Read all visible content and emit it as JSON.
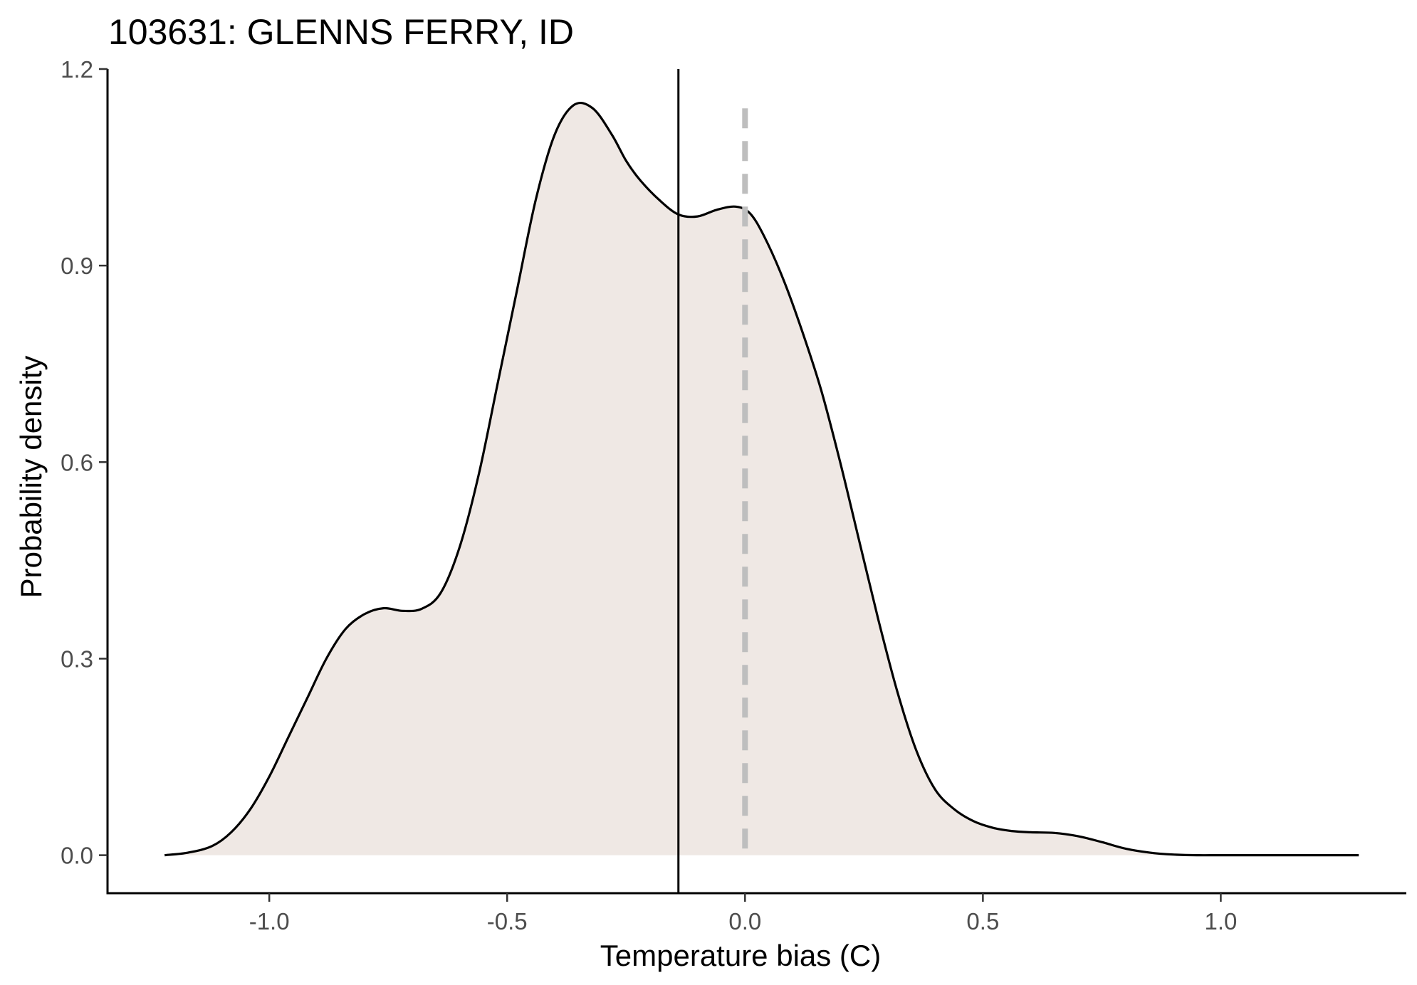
{
  "chart_data": {
    "type": "area",
    "title": "103631: GLENNS FERRY, ID",
    "xlabel": "Temperature bias (C)",
    "ylabel": "Probability density",
    "xlim": [
      -1.34,
      1.39
    ],
    "ylim": [
      -0.058,
      1.2
    ],
    "x_ticks": [
      -1.0,
      -0.5,
      0.0,
      0.5,
      1.0
    ],
    "x_tick_labels": [
      "-1.0",
      "-0.5",
      "0.0",
      "0.5",
      "1.0"
    ],
    "y_ticks": [
      0.0,
      0.3,
      0.6,
      0.9,
      1.2
    ],
    "y_tick_labels": [
      "0.0",
      "0.3",
      "0.6",
      "0.9",
      "1.2"
    ],
    "grid": false,
    "legend": "none",
    "fill_color": "#efe8e4",
    "line_color": "#000000",
    "mean_line_color": "#000000",
    "zero_line_color": "#bebebe",
    "vertical_lines": [
      {
        "x": -0.14,
        "style": "solid"
      },
      {
        "x": 0.0,
        "style": "dashed"
      }
    ],
    "series": [
      {
        "x": [
          -1.22,
          -1.17,
          -1.12,
          -1.08,
          -1.04,
          -1.0,
          -0.96,
          -0.92,
          -0.88,
          -0.84,
          -0.8,
          -0.76,
          -0.72,
          -0.68,
          -0.64,
          -0.6,
          -0.56,
          -0.52,
          -0.48,
          -0.44,
          -0.4,
          -0.36,
          -0.32,
          -0.28,
          -0.25,
          -0.22,
          -0.18,
          -0.14,
          -0.1,
          -0.06,
          -0.02,
          0.01,
          0.04,
          0.08,
          0.12,
          0.16,
          0.2,
          0.24,
          0.28,
          0.32,
          0.36,
          0.4,
          0.44,
          0.48,
          0.52,
          0.56,
          0.6,
          0.65,
          0.7,
          0.75,
          0.8,
          0.85,
          0.9,
          0.95,
          1.0,
          1.05,
          1.1,
          1.15,
          1.2,
          1.29
        ],
        "values": [
          0.0,
          0.004,
          0.014,
          0.035,
          0.07,
          0.12,
          0.18,
          0.24,
          0.3,
          0.345,
          0.368,
          0.377,
          0.373,
          0.376,
          0.4,
          0.47,
          0.58,
          0.72,
          0.86,
          1.0,
          1.1,
          1.145,
          1.14,
          1.1,
          1.06,
          1.03,
          1.0,
          0.978,
          0.975,
          0.985,
          0.99,
          0.98,
          0.945,
          0.88,
          0.8,
          0.71,
          0.6,
          0.48,
          0.36,
          0.25,
          0.16,
          0.1,
          0.07,
          0.052,
          0.042,
          0.037,
          0.035,
          0.034,
          0.029,
          0.02,
          0.01,
          0.004,
          0.001,
          0.0,
          0.0,
          0.0,
          0.0,
          0.0,
          0.0,
          0.0
        ]
      }
    ]
  }
}
